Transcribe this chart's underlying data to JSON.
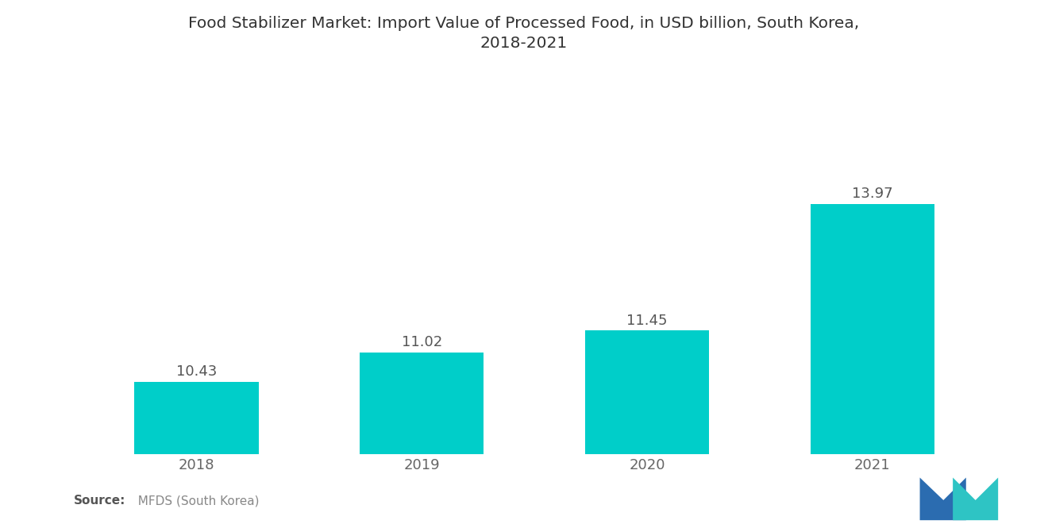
{
  "title_line1": "Food Stabilizer Market: Import Value of Processed Food, in USD billion, South Korea,",
  "title_line2": "2018-2021",
  "categories": [
    "2018",
    "2019",
    "2020",
    "2021"
  ],
  "values": [
    10.43,
    11.02,
    11.45,
    13.97
  ],
  "bar_color": "#00CEC9",
  "bar_width": 0.55,
  "value_label_fontsize": 13,
  "title_fontsize": 14.5,
  "tick_fontsize": 13,
  "source_bold": "Source:",
  "source_rest": "  MFDS (South Korea)",
  "background_color": "#ffffff",
  "ylim": [
    9.0,
    15.5
  ],
  "value_label_color": "#555555",
  "tick_color": "#666666",
  "spine_color": "#cccccc",
  "logo_blue": "#2B6CB0",
  "logo_teal": "#2EC4C4"
}
